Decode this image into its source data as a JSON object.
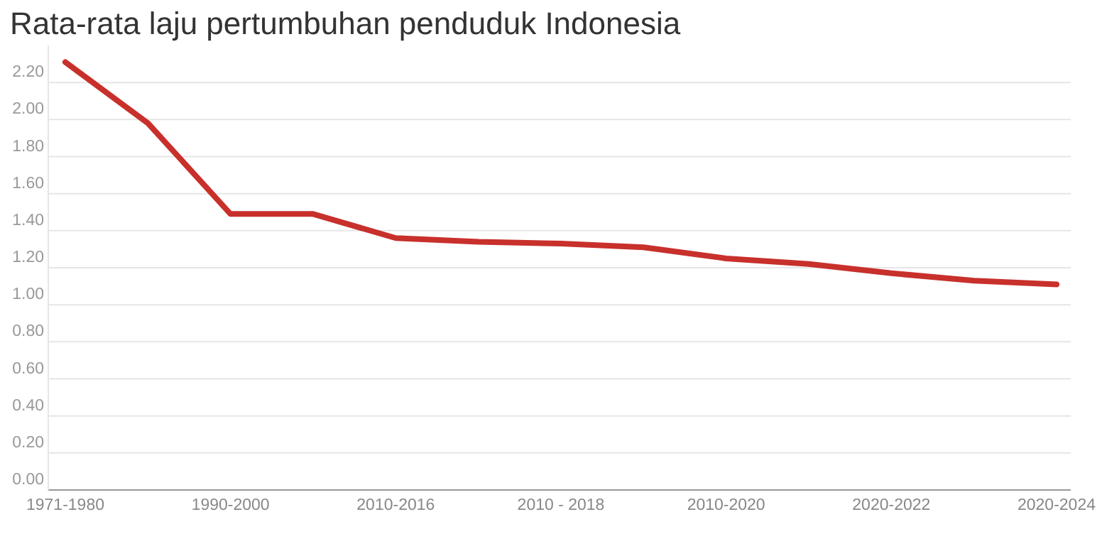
{
  "chart_data": {
    "type": "line",
    "title": "Rata-rata laju pertumbuhan penduduk Indonesia",
    "categories": [
      "1971-1980",
      null,
      "1990-2000",
      null,
      "2010-2016",
      null,
      "2010 - 2018",
      null,
      "2010-2020",
      null,
      "2020-2022",
      null,
      "2020-2024"
    ],
    "series": [
      {
        "color": "#c8302c",
        "values": [
          2.31,
          1.98,
          1.49,
          1.49,
          1.36,
          1.34,
          1.33,
          1.31,
          1.25,
          1.22,
          1.17,
          1.13,
          1.11
        ]
      }
    ],
    "ylim": [
      0,
      2.4
    ],
    "yticks": [
      {
        "value": 0,
        "label": "0.00"
      },
      {
        "value": 0.2,
        "label": "0.20"
      },
      {
        "value": 0.4,
        "label": "0.40"
      },
      {
        "value": 0.6,
        "label": "0.60"
      },
      {
        "value": 0.8,
        "label": "0.80"
      },
      {
        "value": 1,
        "label": "1.00"
      },
      {
        "value": 1.2,
        "label": "1.20"
      },
      {
        "value": 1.4,
        "label": "1.40"
      },
      {
        "value": 1.6,
        "label": "1.60"
      },
      {
        "value": 1.8,
        "label": "1.80"
      },
      {
        "value": 2,
        "label": "2.00"
      },
      {
        "value": 2.2,
        "label": "2.20"
      }
    ],
    "grid": "y",
    "marker": "none",
    "line_style": "solid"
  }
}
